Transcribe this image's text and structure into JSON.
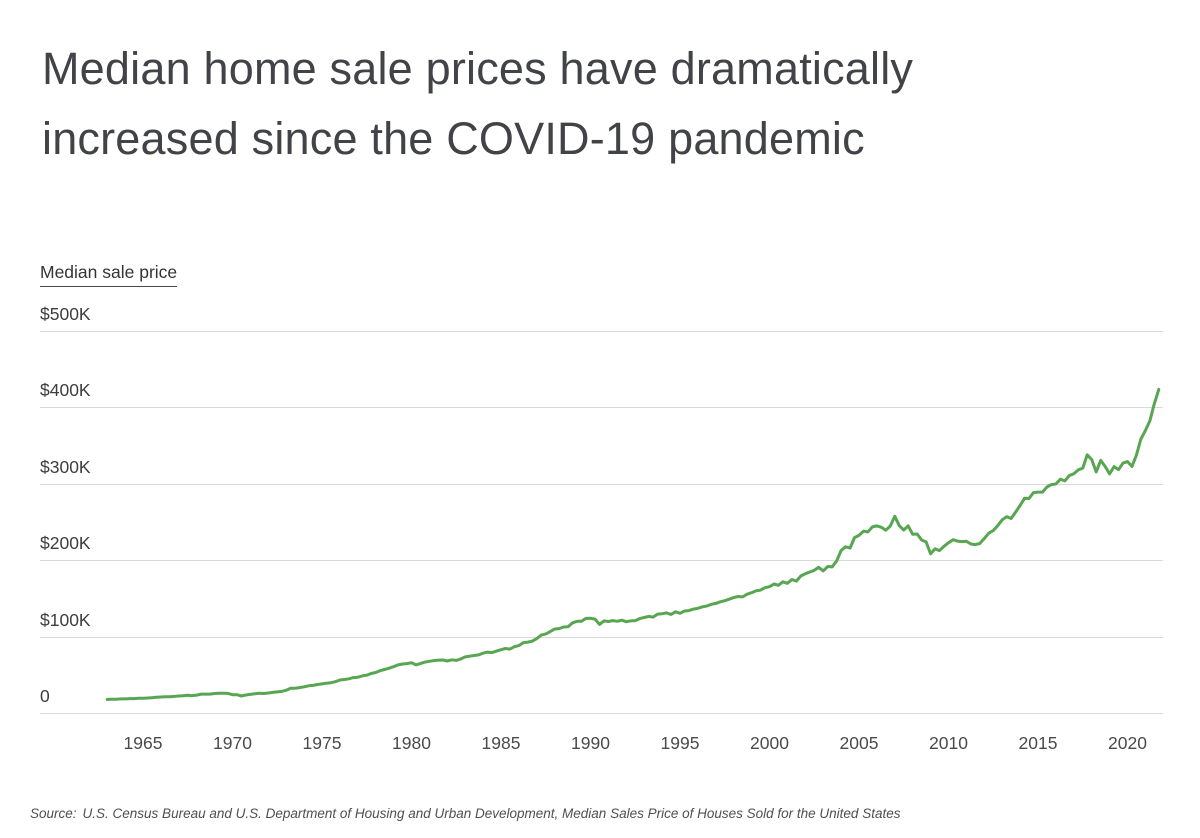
{
  "page": {
    "title": "Median home sale prices have dramatically\nincreased since the COVID-19 pandemic",
    "source_prefix": "Source:",
    "source_text": "U.S. Census Bureau and U.S. Department of Housing and Urban Development, Median Sales Price of Houses Sold for the United States"
  },
  "colors": {
    "line_green": "#58a552",
    "gridline": "#d9d9d9",
    "title_text": "#414347",
    "tick_text": "#3d3d3d"
  },
  "chart_data": {
    "type": "line",
    "title": "Median home sale prices have dramatically increased since the COVID-19 pandemic",
    "ylabel": "Median sale price",
    "xlabel": "",
    "legend": "none",
    "grid": "horizontal-only",
    "ylim": [
      0,
      500000
    ],
    "y_ticks": [
      {
        "value": 500000,
        "label": "$500K"
      },
      {
        "value": 400000,
        "label": "$400K"
      },
      {
        "value": 300000,
        "label": "$300K"
      },
      {
        "value": 200000,
        "label": "$200K"
      },
      {
        "value": 100000,
        "label": "$100K"
      },
      {
        "value": 0,
        "label": "0"
      }
    ],
    "x_ticks": [
      {
        "value": 1965,
        "label": "1965"
      },
      {
        "value": 1970,
        "label": "1970"
      },
      {
        "value": 1975,
        "label": "1975"
      },
      {
        "value": 1980,
        "label": "1980"
      },
      {
        "value": 1985,
        "label": "1985"
      },
      {
        "value": 1990,
        "label": "1990"
      },
      {
        "value": 1995,
        "label": "1995"
      },
      {
        "value": 2000,
        "label": "2000"
      },
      {
        "value": 2005,
        "label": "2005"
      },
      {
        "value": 2010,
        "label": "2010"
      },
      {
        "value": 2015,
        "label": "2015"
      },
      {
        "value": 2020,
        "label": "2020"
      }
    ],
    "series": [
      {
        "name": "Median sale price",
        "color": "#58a552",
        "frequency": "quarterly",
        "x_start_year": 1963.0,
        "x_step_years": 0.25,
        "values": [
          17800,
          18000,
          17900,
          18500,
          18500,
          18900,
          18900,
          19300,
          19400,
          19600,
          20000,
          20600,
          21000,
          21400,
          21300,
          21700,
          22200,
          22700,
          23300,
          22700,
          23400,
          24700,
          24700,
          24700,
          25500,
          25800,
          25900,
          25600,
          23900,
          23900,
          22300,
          23600,
          24300,
          25200,
          25900,
          25500,
          26200,
          27000,
          27600,
          28300,
          29900,
          32500,
          32500,
          33200,
          34300,
          35600,
          36100,
          37300,
          38100,
          39000,
          39600,
          41000,
          43200,
          43900,
          44800,
          46300,
          46800,
          48500,
          49500,
          51700,
          53000,
          55500,
          57000,
          58700,
          60600,
          62900,
          64200,
          64700,
          65800,
          63000,
          64600,
          66600,
          67700,
          68600,
          69200,
          69400,
          68100,
          69600,
          68800,
          70700,
          73400,
          74400,
          75300,
          76000,
          78300,
          79700,
          79000,
          81000,
          82800,
          84400,
          83700,
          86800,
          88200,
          92200,
          92800,
          94000,
          97400,
          102000,
          103500,
          106500,
          110000,
          110500,
          112500,
          113000,
          118000,
          120000,
          120000,
          123800,
          123900,
          122900,
          116000,
          120500,
          119800,
          121000,
          120000,
          121500,
          119500,
          120500,
          121000,
          123500,
          125000,
          126500,
          125500,
          129500,
          130000,
          131000,
          129000,
          132500,
          130500,
          133500,
          134000,
          136000,
          137000,
          139000,
          140000,
          142300,
          143500,
          145600,
          147000,
          149000,
          151000,
          152500,
          152000,
          155500,
          157500,
          160000,
          160800,
          164000,
          165300,
          168800,
          167200,
          171700,
          169800,
          174800,
          172600,
          179300,
          182300,
          184500,
          186800,
          190700,
          186000,
          191800,
          191200,
          198800,
          212700,
          217600,
          215800,
          229600,
          232500,
          237900,
          237000,
          243600,
          244900,
          243100,
          239300,
          244700,
          257400,
          245200,
          239500,
          244900,
          233900,
          234300,
          226500,
          224000,
          208400,
          214900,
          212600,
          218200,
          222900,
          226800,
          225000,
          224300,
          224700,
          221200,
          220400,
          221800,
          228400,
          235400,
          238700,
          245200,
          252900,
          256900,
          254600,
          263000,
          271600,
          281200,
          280700,
          288500,
          289200,
          289100,
          295800,
          299000,
          299800,
          306000,
          303800,
          310900,
          313100,
          318200,
          320500,
          337900,
          331800,
          315600,
          330600,
          322800,
          313000,
          322500,
          318400,
          327100,
          329000,
          322600,
          337500,
          358700,
          369800,
          382600,
          404700,
          423600
        ]
      }
    ]
  }
}
